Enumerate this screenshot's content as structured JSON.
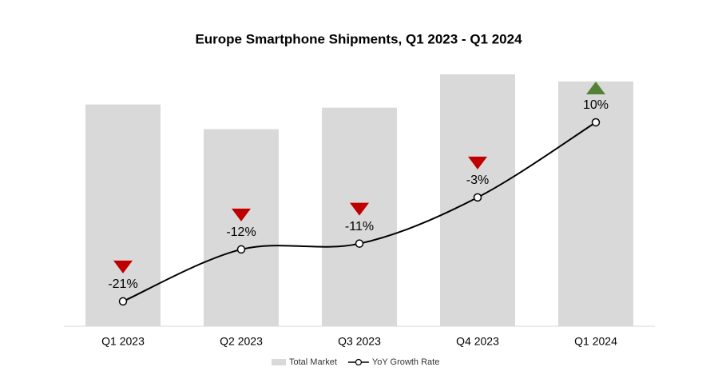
{
  "chart_data": {
    "type": "bar-line",
    "title": "Europe Smartphone Shipments, Q1 2023 - Q1 2024",
    "categories": [
      "Q1 2023",
      "Q2 2023",
      "Q3 2023",
      "Q4 2023",
      "Q1 2024"
    ],
    "ylim": [
      0,
      330
    ],
    "y2lim": [
      -25.3,
      20.1
    ],
    "series": [
      {
        "name": "Total Market",
        "type": "bar",
        "color": "#d9d9d9",
        "values": [
          279,
          248,
          275,
          317,
          308
        ]
      },
      {
        "name": "YoY Growth Rate",
        "type": "line",
        "axis": "y2",
        "color": "#000000",
        "values": [
          -21,
          -12,
          -11,
          -3,
          10
        ],
        "value_labels": [
          "-21%",
          "-12%",
          "-11%",
          "-3%",
          "10%"
        ]
      }
    ],
    "down_color": "#c00000",
    "up_color": "#548235",
    "legend": "bottom"
  }
}
